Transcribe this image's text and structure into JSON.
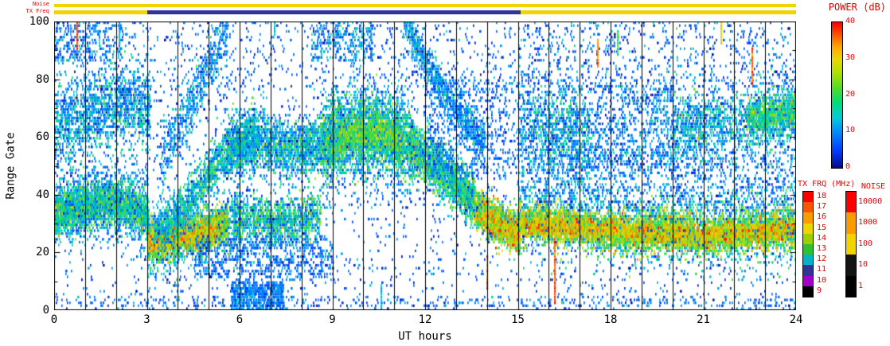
{
  "figure": {
    "top_left_labels": {
      "noise": "Noise",
      "tx_freq": "TX Freq"
    },
    "power_colorbar": {
      "title": "POWER (dB)",
      "min": 0,
      "max": 40,
      "ticks": [
        0,
        10,
        20,
        30,
        40
      ]
    },
    "txfrq_colorbar": {
      "title": "TX FRQ (MHz)",
      "segments": [
        {
          "label": "18",
          "color": "#fa0000"
        },
        {
          "label": "17",
          "color": "#fa5500"
        },
        {
          "label": "16",
          "color": "#fa9b00"
        },
        {
          "label": "15",
          "color": "#f0d400"
        },
        {
          "label": "14",
          "color": "#9ed000"
        },
        {
          "label": "13",
          "color": "#2fc22f"
        },
        {
          "label": "12",
          "color": "#00b4c8"
        },
        {
          "label": "11",
          "color": "#32329b"
        },
        {
          "label": "10",
          "color": "#a000c8"
        },
        {
          "label": "9",
          "color": "#000000"
        }
      ]
    },
    "noise_colorbar": {
      "title": "NOISE",
      "segments": [
        {
          "label": "10000",
          "color": "#fa0000"
        },
        {
          "label": "1000",
          "color": "#fa9b00"
        },
        {
          "label": "100",
          "color": "#f0d400"
        },
        {
          "label": "10",
          "color": "#141414"
        },
        {
          "label": "1",
          "color": "#000000"
        }
      ]
    }
  },
  "axes": {
    "x": {
      "label": "UT hours",
      "min": 0,
      "max": 24,
      "major_ticks": [
        0,
        3,
        6,
        9,
        12,
        15,
        18,
        21,
        24
      ],
      "minor_step": 1
    },
    "y": {
      "label": "Range Gate",
      "min": 0,
      "max": 100,
      "major_ticks": [
        0,
        20,
        40,
        60,
        80,
        100
      ],
      "minor_step": 10
    }
  },
  "strips": {
    "noise": {
      "segments": [
        {
          "t0": 0,
          "t1": 24,
          "color": "#f0d400"
        }
      ]
    },
    "tx_freq": {
      "segments": [
        {
          "t0": 0,
          "t1": 3,
          "color": "#f0d400"
        },
        {
          "t0": 3,
          "t1": 15.1,
          "color": "#32329b"
        },
        {
          "t0": 15.1,
          "t1": 24,
          "color": "#f0d400"
        }
      ]
    }
  },
  "chart_data": {
    "type": "heatmap",
    "xlabel": "UT hours",
    "ylabel": "Range Gate",
    "zlabel": "POWER (dB)",
    "xlim": [
      0,
      24
    ],
    "ylim": [
      0,
      100
    ],
    "zlim": [
      0,
      40
    ],
    "seed": 7,
    "colormap_stops": [
      {
        "v": 0.0,
        "c": [
          8,
          8,
          140
        ]
      },
      {
        "v": 0.12,
        "c": [
          0,
          60,
          255
        ]
      },
      {
        "v": 0.25,
        "c": [
          0,
          140,
          255
        ]
      },
      {
        "v": 0.35,
        "c": [
          0,
          205,
          215
        ]
      },
      {
        "v": 0.45,
        "c": [
          0,
          220,
          120
        ]
      },
      {
        "v": 0.55,
        "c": [
          80,
          220,
          40
        ]
      },
      {
        "v": 0.65,
        "c": [
          170,
          225,
          0
        ]
      },
      {
        "v": 0.75,
        "c": [
          235,
          215,
          0
        ]
      },
      {
        "v": 0.83,
        "c": [
          255,
          170,
          0
        ]
      },
      {
        "v": 0.91,
        "c": [
          255,
          90,
          0
        ]
      },
      {
        "v": 1.0,
        "c": [
          250,
          0,
          0
        ]
      }
    ],
    "vertical_lines_hours": [
      1,
      2,
      3,
      4,
      5,
      6,
      7,
      8,
      9,
      10,
      11,
      12,
      13,
      14,
      15,
      16,
      17,
      18,
      19,
      20,
      21,
      22,
      23
    ],
    "bands": [
      {
        "t0": 0,
        "t1": 3,
        "path": [
          [
            0,
            36
          ],
          [
            1.5,
            38
          ],
          [
            3,
            34
          ]
        ],
        "sigma": 7,
        "count": 900,
        "power": 10,
        "spread": 4
      },
      {
        "t0": 0,
        "t1": 3,
        "path": [
          [
            0,
            33
          ],
          [
            0.8,
            35
          ],
          [
            1.6,
            37
          ],
          [
            2.3,
            36
          ],
          [
            3,
            32
          ]
        ],
        "sigma": 3.5,
        "count": 2400,
        "power": 16,
        "spread": 6
      },
      {
        "t0": 0,
        "t1": 3.1,
        "path": [
          [
            0,
            64
          ],
          [
            1,
            67
          ],
          [
            2,
            70
          ],
          [
            3.1,
            70
          ]
        ],
        "sigma": 7,
        "count": 1500,
        "power": 11,
        "spread": 5
      },
      {
        "t0": 0,
        "t1": 2.2,
        "g0": 85,
        "g1": 100,
        "count": 260,
        "power": 9,
        "spread": 4
      },
      {
        "t0": 3,
        "t1": 6,
        "path": [
          [
            3,
            22
          ],
          [
            4.5,
            26
          ],
          [
            6,
            30
          ]
        ],
        "sigma": 6,
        "count": 900,
        "power": 12,
        "spread": 5
      },
      {
        "t0": 3,
        "t1": 5.6,
        "path": [
          [
            3,
            23
          ],
          [
            3.8,
            24
          ],
          [
            4.6,
            26
          ],
          [
            5.6,
            29
          ]
        ],
        "sigma": 3,
        "count": 2300,
        "power": 23,
        "spread": 7
      },
      {
        "t0": 3,
        "t1": 5.2,
        "path": [
          [
            3,
            23
          ],
          [
            4,
            24.5
          ],
          [
            5.2,
            27
          ]
        ],
        "sigma": 1.5,
        "count": 900,
        "power": 30,
        "spread": 5
      },
      {
        "t0": 3.2,
        "t1": 6.5,
        "path": [
          [
            3.2,
            26
          ],
          [
            4,
            33
          ],
          [
            4.8,
            44
          ],
          [
            5.6,
            55
          ],
          [
            6.5,
            62
          ]
        ],
        "sigma": 4,
        "count": 1500,
        "power": 14,
        "spread": 5
      },
      {
        "t0": 3.4,
        "t1": 5.6,
        "path": [
          [
            3.4,
            50
          ],
          [
            4.2,
            66
          ],
          [
            5,
            84
          ],
          [
            5.6,
            98
          ]
        ],
        "sigma": 6,
        "count": 600,
        "power": 10,
        "spread": 4
      },
      {
        "t0": 5.6,
        "t1": 8.6,
        "path": [
          [
            5.6,
            56
          ],
          [
            6.6,
            58
          ],
          [
            7.6,
            55
          ],
          [
            8.6,
            57
          ]
        ],
        "sigma": 5,
        "count": 1700,
        "power": 13,
        "spread": 5
      },
      {
        "t0": 5.8,
        "t1": 8.6,
        "path": [
          [
            5.8,
            31
          ],
          [
            7,
            30
          ],
          [
            8.6,
            32
          ]
        ],
        "sigma": 4,
        "count": 1200,
        "power": 15,
        "spread": 6
      },
      {
        "t0": 5.7,
        "t1": 7.4,
        "g0": 0,
        "g1": 9,
        "count": 650,
        "power": 9,
        "spread": 3
      },
      {
        "t0": 4.5,
        "t1": 9,
        "g0": 10,
        "g1": 25,
        "count": 700,
        "power": 8,
        "spread": 3
      },
      {
        "t0": 8.6,
        "t1": 11.6,
        "path": [
          [
            8.6,
            57
          ],
          [
            10,
            62
          ],
          [
            11.6,
            56
          ]
        ],
        "sigma": 10,
        "count": 900,
        "power": 10,
        "spread": 4
      },
      {
        "t0": 8.6,
        "t1": 11.6,
        "path": [
          [
            8.6,
            57
          ],
          [
            9.6,
            61
          ],
          [
            10.6,
            60
          ],
          [
            11.6,
            57
          ]
        ],
        "sigma": 6,
        "count": 3000,
        "power": 16,
        "spread": 6
      },
      {
        "t0": 9.2,
        "t1": 11.2,
        "path": [
          [
            9.2,
            59
          ],
          [
            10.2,
            61
          ],
          [
            11.2,
            58
          ]
        ],
        "sigma": 2.5,
        "count": 700,
        "power": 22,
        "spread": 5
      },
      {
        "t0": 8.3,
        "t1": 10.3,
        "g0": 86,
        "g1": 100,
        "count": 300,
        "power": 10,
        "spread": 4
      },
      {
        "t0": 11.6,
        "t1": 13.6,
        "path": [
          [
            11.6,
            55
          ],
          [
            12.4,
            49
          ],
          [
            13,
            43
          ],
          [
            13.6,
            37
          ]
        ],
        "sigma": 4.5,
        "count": 1800,
        "power": 16,
        "spread": 6
      },
      {
        "t0": 13.6,
        "t1": 15.05,
        "path": [
          [
            13.6,
            35
          ],
          [
            14.2,
            30
          ],
          [
            15.05,
            26
          ]
        ],
        "sigma": 3.2,
        "count": 1700,
        "power": 25,
        "spread": 7
      },
      {
        "t0": 13.8,
        "t1": 15.05,
        "path": [
          [
            13.8,
            32
          ],
          [
            14.4,
            28
          ],
          [
            15.05,
            25.5
          ]
        ],
        "sigma": 1.5,
        "count": 700,
        "power": 30,
        "spread": 5
      },
      {
        "t0": 11.3,
        "t1": 13.9,
        "path": [
          [
            11.3,
            100
          ],
          [
            12.1,
            84
          ],
          [
            12.9,
            70
          ],
          [
            13.9,
            57
          ]
        ],
        "sigma": 3.5,
        "count": 900,
        "power": 11,
        "spread": 4
      },
      {
        "t0": 12,
        "t1": 15,
        "g0": 45,
        "g1": 80,
        "count": 600,
        "power": 8,
        "spread": 3
      },
      {
        "t0": 15.05,
        "t1": 24,
        "path": [
          [
            15.05,
            32
          ],
          [
            18,
            29
          ],
          [
            21,
            28
          ],
          [
            24,
            30
          ]
        ],
        "sigma": 7,
        "count": 2200,
        "power": 13,
        "spread": 5
      },
      {
        "t0": 15.05,
        "t1": 24,
        "path": [
          [
            15.05,
            30
          ],
          [
            16,
            29
          ],
          [
            17,
            28
          ],
          [
            18,
            26
          ],
          [
            19,
            26
          ],
          [
            20,
            27
          ],
          [
            21,
            25
          ],
          [
            22,
            26
          ],
          [
            23,
            27
          ],
          [
            24,
            28
          ]
        ],
        "sigma": 3.2,
        "count": 5200,
        "power": 24,
        "spread": 6
      },
      {
        "t0": 15.05,
        "t1": 24,
        "path": [
          [
            15.05,
            29
          ],
          [
            17,
            28
          ],
          [
            19,
            26
          ],
          [
            21,
            25.5
          ],
          [
            23,
            26.5
          ],
          [
            24,
            27.5
          ]
        ],
        "sigma": 1.6,
        "count": 2000,
        "power": 30,
        "spread": 5
      },
      {
        "t0": 15.05,
        "t1": 17.3,
        "path": [
          [
            15.05,
            64
          ],
          [
            16,
            62
          ],
          [
            17.3,
            60
          ]
        ],
        "sigma": 9,
        "count": 1100,
        "power": 11,
        "spread": 5
      },
      {
        "t0": 17.3,
        "t1": 20,
        "g0": 48,
        "g1": 78,
        "count": 700,
        "power": 9,
        "spread": 4
      },
      {
        "t0": 20,
        "t1": 24,
        "path": [
          [
            20,
            62
          ],
          [
            21.5,
            64
          ],
          [
            23,
            66
          ],
          [
            24,
            67
          ]
        ],
        "sigma": 6,
        "count": 1500,
        "power": 12,
        "spread": 5
      },
      {
        "t0": 22.4,
        "t1": 24,
        "path": [
          [
            22.4,
            66
          ],
          [
            24,
            68
          ]
        ],
        "sigma": 3,
        "count": 600,
        "power": 18,
        "spread": 5
      },
      {
        "t0": 0,
        "t1": 24,
        "g0": 0,
        "g1": 100,
        "count": 2600,
        "power": 7,
        "spread": 3
      },
      {
        "t0": 0,
        "t1": 24,
        "g0": 0,
        "g1": 4,
        "count": 420,
        "power": 8,
        "spread": 3
      },
      {
        "t0": 15,
        "t1": 24,
        "g0": 35,
        "g1": 55,
        "count": 900,
        "power": 9,
        "spread": 4
      },
      {
        "t0": 15,
        "t1": 24,
        "g0": 75,
        "g1": 100,
        "count": 500,
        "power": 8,
        "spread": 4
      },
      {
        "t0": 0,
        "t1": 15,
        "g0": 75,
        "g1": 100,
        "count": 450,
        "power": 8,
        "spread": 3
      }
    ],
    "streaks": [
      {
        "t": 0.72,
        "g0": 90,
        "g1": 100,
        "power": 37
      },
      {
        "t": 2.08,
        "g0": 92,
        "g1": 100,
        "power": 12
      },
      {
        "t": 7.1,
        "g0": 95,
        "g1": 100,
        "power": 13
      },
      {
        "t": 10.55,
        "g0": 0,
        "g1": 8,
        "power": 12
      },
      {
        "t": 13.97,
        "g0": 7,
        "g1": 18,
        "power": 36
      },
      {
        "t": 16.17,
        "g0": 2,
        "g1": 24,
        "power": 37
      },
      {
        "t": 17.55,
        "g0": 84,
        "g1": 93,
        "power": 35
      },
      {
        "t": 18.2,
        "g0": 88,
        "g1": 96,
        "power": 20
      },
      {
        "t": 21.55,
        "g0": 92,
        "g1": 100,
        "power": 31
      },
      {
        "t": 22.55,
        "g0": 78,
        "g1": 90,
        "power": 37
      }
    ]
  }
}
